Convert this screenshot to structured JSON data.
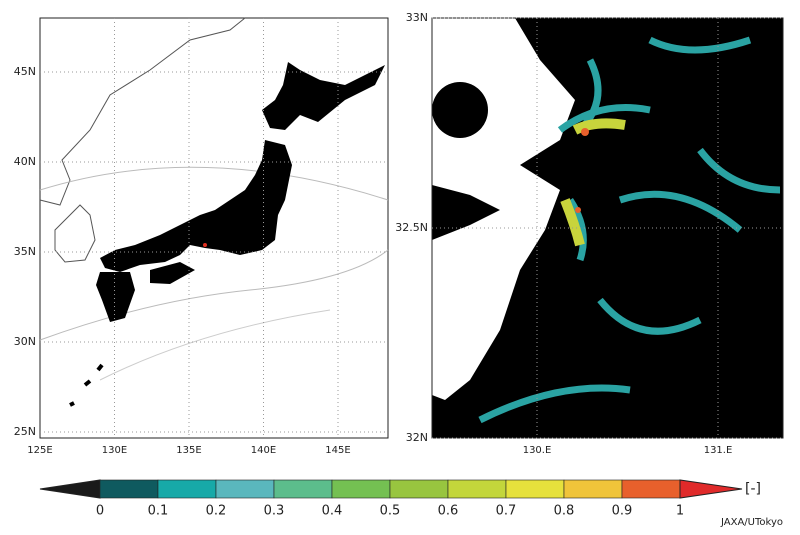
{
  "left_map": {
    "lon_labels": [
      "125E",
      "130E",
      "135E",
      "140E",
      "145E"
    ],
    "lat_labels": [
      "25N",
      "30N",
      "35N",
      "40N",
      "45N"
    ]
  },
  "right_map": {
    "lon_labels": [
      "130.E",
      "131.E"
    ],
    "lat_labels": [
      "32N",
      "32.5N",
      "33N"
    ]
  },
  "colorbar": {
    "labels": [
      0,
      0.1,
      0.2,
      0.3,
      0.4,
      0.5,
      0.6,
      0.7,
      0.8,
      0.9,
      1
    ],
    "colors": [
      "#0f5a5f",
      "#17a9a8",
      "#5ab7bd",
      "#5cbd8c",
      "#74c052",
      "#98c53f",
      "#c3d63b",
      "#e6e13c",
      "#f0c43a",
      "#e8602c"
    ],
    "under_color": "#1a1a1a",
    "over_color": "#e02a2a",
    "unit": "[-]"
  },
  "credit": "JAXA/UTokyo"
}
